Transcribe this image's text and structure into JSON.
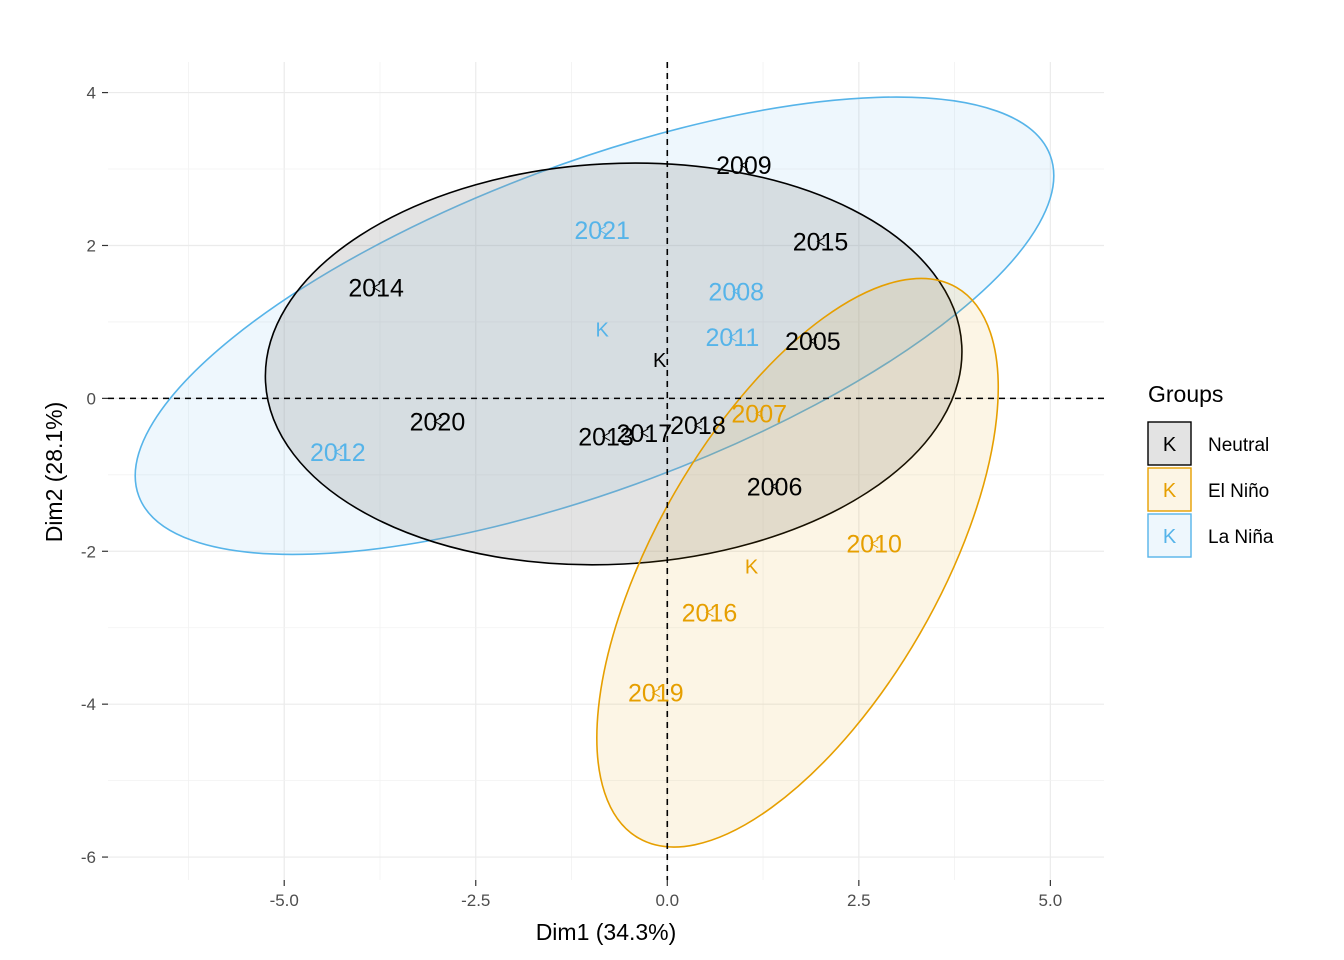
{
  "chart_data": {
    "type": "scatter",
    "title": "",
    "xlabel": "Dim1 (34.3%)",
    "ylabel": "Dim2 (28.1%)",
    "xlim": [
      -7.3,
      5.7
    ],
    "ylim": [
      -6.3,
      4.4
    ],
    "x_ticks": [
      -5.0,
      -2.5,
      0.0,
      2.5,
      5.0
    ],
    "x_tick_labels": [
      "-5.0",
      "-2.5",
      "0.0",
      "2.5",
      "5.0"
    ],
    "y_ticks": [
      -6,
      -4,
      -2,
      0,
      2,
      4
    ],
    "y_tick_labels": [
      "-6",
      "-4",
      "-2",
      "0",
      "2",
      "4"
    ],
    "grid": true,
    "reference_lines": {
      "x": 0,
      "y": 0,
      "style": "dashed"
    },
    "legend": {
      "title": "Groups",
      "position": "right",
      "entries": [
        {
          "name": "Neutral",
          "glyph": "K"
        },
        {
          "name": "El Niño",
          "glyph": "K"
        },
        {
          "name": "La Niña",
          "glyph": "K"
        }
      ]
    },
    "series": [
      {
        "name": "Neutral",
        "color": "#000000",
        "fill": "#999999",
        "fill_opacity": 0.28,
        "centroid": {
          "x": -0.1,
          "y": 0.5,
          "label": "K"
        },
        "ellipse": {
          "cx": -0.7,
          "cy": 0.45,
          "rx": 4.55,
          "ry": 2.62,
          "angle_deg": 3
        },
        "points": [
          {
            "label": "2009",
            "x": 1.0,
            "y": 3.05
          },
          {
            "label": "2015",
            "x": 2.0,
            "y": 2.05
          },
          {
            "label": "2014",
            "x": -3.8,
            "y": 1.45
          },
          {
            "label": "2005",
            "x": 1.9,
            "y": 0.75
          },
          {
            "label": "2020",
            "x": -3.0,
            "y": -0.3
          },
          {
            "label": "2018",
            "x": 0.4,
            "y": -0.35
          },
          {
            "label": "2013",
            "x": -0.8,
            "y": -0.5
          },
          {
            "label": "2017",
            "x": -0.3,
            "y": -0.45
          },
          {
            "label": "2006",
            "x": 1.4,
            "y": -1.15
          }
        ]
      },
      {
        "name": "El Niño",
        "color": "#E69F00",
        "fill": "#E69F00",
        "fill_opacity": 0.1,
        "centroid": {
          "x": 1.1,
          "y": -2.2,
          "label": "K"
        },
        "ellipse": {
          "cx": 1.7,
          "cy": -2.15,
          "rx": 4.15,
          "ry": 1.85,
          "angle_deg": 60
        },
        "points": [
          {
            "label": "2007",
            "x": 1.2,
            "y": -0.2
          },
          {
            "label": "2010",
            "x": 2.7,
            "y": -1.9
          },
          {
            "label": "2016",
            "x": 0.55,
            "y": -2.8
          },
          {
            "label": "2019",
            "x": -0.15,
            "y": -3.85
          }
        ]
      },
      {
        "name": "La Niña",
        "color": "#56B4E9",
        "fill": "#56B4E9",
        "fill_opacity": 0.1,
        "centroid": {
          "x": -0.85,
          "y": 0.9,
          "label": "K"
        },
        "ellipse": {
          "cx": -0.95,
          "cy": 0.95,
          "rx": 6.35,
          "ry": 2.13,
          "angle_deg": 20.5
        },
        "points": [
          {
            "label": "2021",
            "x": -0.85,
            "y": 2.2
          },
          {
            "label": "2008",
            "x": 0.9,
            "y": 1.4
          },
          {
            "label": "2011",
            "x": 0.85,
            "y": 0.8
          },
          {
            "label": "2012",
            "x": -4.3,
            "y": -0.7
          }
        ]
      }
    ]
  }
}
